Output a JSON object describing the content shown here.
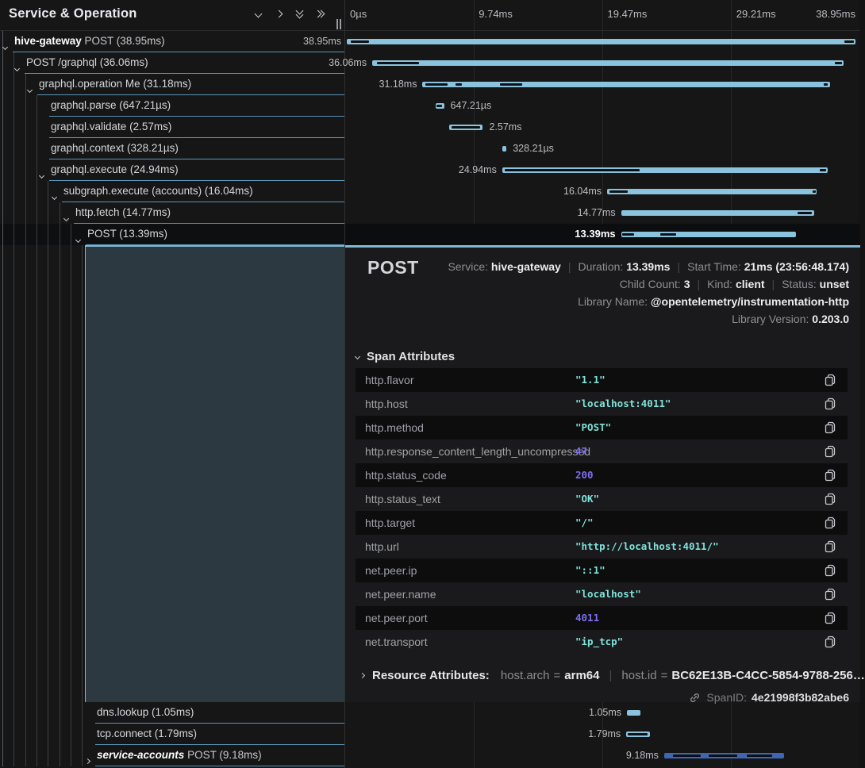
{
  "header": {
    "title": "Service & Operation",
    "icons": [
      "chevron-down-icon",
      "chevron-right-icon",
      "double-chevron-down-icon",
      "double-chevron-right-icon"
    ]
  },
  "ruler": {
    "total_ms": 38.95,
    "ticks": [
      {
        "label": "0µs",
        "pct": 0
      },
      {
        "label": "9.74ms",
        "pct": 25
      },
      {
        "label": "19.47ms",
        "pct": 50
      },
      {
        "label": "29.21ms",
        "pct": 75
      },
      {
        "label": "38.95ms",
        "pct": 100
      }
    ]
  },
  "colors": {
    "bar_light_blue": "#8ac3de",
    "bar_royal_blue": "#3f66b0",
    "row_separator": "#68acd6",
    "selected_panel": "#2c3940",
    "accent_border": "#7fb9d6",
    "attr_string": "#7fe3da",
    "attr_number": "#7d6ef2"
  },
  "rows": [
    {
      "name_bold": "hive-gateway",
      "text": " POST (38.95ms)",
      "indent": 18,
      "guides": 1,
      "chevron": "down",
      "bar": {
        "start": 0.0,
        "dur": 38.95,
        "color": "light",
        "label": "38.95ms",
        "label_side": "left",
        "marks": [
          [
            0.3,
            1.4
          ],
          [
            38.1,
            0.75
          ]
        ]
      }
    },
    {
      "text": "POST /graphql (36.06ms)",
      "indent": 33,
      "guides": 2,
      "chevron": "down",
      "bar": {
        "start": 1.95,
        "dur": 36.06,
        "color": "light",
        "label": "36.06ms",
        "label_side": "left",
        "marks": [
          [
            2.3,
            3.2
          ],
          [
            37.4,
            0.5
          ]
        ]
      }
    },
    {
      "text": "graphql.operation Me (31.18ms)",
      "indent": 49,
      "guides": 3,
      "chevron": "down",
      "bar": {
        "start": 5.8,
        "dur": 31.18,
        "color": "light",
        "label": "31.18ms",
        "label_side": "left",
        "marks": [
          [
            6.0,
            1.7
          ],
          [
            8.3,
            0.5
          ],
          [
            11.7,
            1.7
          ],
          [
            36.5,
            0.3
          ]
        ]
      }
    },
    {
      "text": "graphql.parse (647.21µs)",
      "indent": 64,
      "guides": 4,
      "chevron": "none",
      "bar": {
        "start": 6.8,
        "dur": 0.647,
        "color": "light",
        "label": "647.21µs",
        "label_side": "right",
        "marks": [
          [
            6.85,
            0.45
          ]
        ]
      }
    },
    {
      "text": "graphql.validate (2.57ms)",
      "indent": 64,
      "guides": 4,
      "chevron": "none",
      "bar": {
        "start": 7.85,
        "dur": 2.57,
        "color": "light",
        "label": "2.57ms",
        "label_side": "right",
        "marks": [
          [
            8.0,
            2.2
          ]
        ]
      }
    },
    {
      "text": "graphql.context (328.21µs)",
      "indent": 64,
      "guides": 4,
      "chevron": "none",
      "bar": {
        "start": 11.9,
        "dur": 0.328,
        "color": "light",
        "label": "328.21µs",
        "label_side": "right",
        "marks": []
      }
    },
    {
      "text": "graphql.execute (24.94ms)",
      "indent": 64,
      "guides": 4,
      "chevron": "down",
      "bar": {
        "start": 11.9,
        "dur": 24.94,
        "color": "light",
        "label": "24.94ms",
        "label_side": "left",
        "marks": [
          [
            12.1,
            10.3
          ],
          [
            36.2,
            0.5
          ]
        ]
      }
    },
    {
      "text": "subgraph.execute (accounts) (16.04ms)",
      "indent": 80,
      "guides": 5,
      "chevron": "down",
      "bar": {
        "start": 19.93,
        "dur": 16.04,
        "color": "light",
        "label": "16.04ms",
        "label_side": "left",
        "marks": [
          [
            20.1,
            1.4
          ],
          [
            35.65,
            0.25
          ]
        ]
      }
    },
    {
      "text": "http.fetch (14.77ms)",
      "indent": 95,
      "guides": 6,
      "chevron": "down",
      "bar": {
        "start": 21.0,
        "dur": 14.77,
        "color": "light",
        "label": "14.77ms",
        "label_side": "left",
        "marks": [
          [
            34.5,
            1.1
          ]
        ]
      }
    },
    {
      "text": "POST (13.39ms)",
      "indent": 110,
      "guides": 7,
      "chevron": "down",
      "selected": true,
      "bar": {
        "start": 21.0,
        "dur": 13.39,
        "color": "light",
        "label": "13.39ms",
        "label_side": "left",
        "marks": [
          [
            21.1,
            0.9
          ],
          [
            24.0,
            1.2
          ]
        ]
      }
    },
    {
      "text": "dns.lookup (1.05ms)",
      "indent": 122,
      "guides": 8,
      "chevron": "none",
      "bottom": true,
      "bar": {
        "start": 21.45,
        "dur": 1.05,
        "color": "light",
        "label": "1.05ms",
        "label_side": "left",
        "marks": []
      }
    },
    {
      "text": "tcp.connect (1.79ms)",
      "indent": 122,
      "guides": 8,
      "chevron": "none",
      "bottom": true,
      "bar": {
        "start": 21.4,
        "dur": 1.79,
        "color": "light",
        "label": "1.79ms",
        "label_side": "left",
        "marks": [
          [
            21.5,
            1.55
          ]
        ]
      }
    },
    {
      "name_bold": "service-accounts",
      "italic": true,
      "text": " POST (9.18ms)",
      "indent": 122,
      "guides": 8,
      "chevron": "right",
      "bottom": true,
      "bar": {
        "start": 24.3,
        "dur": 9.18,
        "color": "blue",
        "label": "9.18ms",
        "label_side": "left",
        "marks": [
          [
            25.0,
            2.1
          ],
          [
            27.7,
            2.2
          ],
          [
            30.6,
            2.0
          ]
        ]
      }
    }
  ],
  "detail": {
    "title": "POST",
    "meta_lines": [
      [
        {
          "label": "Service:",
          "value": "hive-gateway"
        },
        {
          "label": "Duration:",
          "value": "13.39ms"
        },
        {
          "label": "Start Time:",
          "value": "21ms (23:56:48.174)"
        }
      ],
      [
        {
          "label": "Child Count:",
          "value": "3"
        },
        {
          "label": "Kind:",
          "value": "client"
        },
        {
          "label": "Status:",
          "value": "unset"
        }
      ],
      [
        {
          "label": "Library Name:",
          "value": "@opentelemetry/instrumentation-http"
        }
      ],
      [
        {
          "label": "Library Version:",
          "value": "0.203.0"
        }
      ]
    ],
    "span_attributes_title": "Span Attributes",
    "attributes": [
      {
        "key": "http.flavor",
        "value": "\"1.1\"",
        "type": "string"
      },
      {
        "key": "http.host",
        "value": "\"localhost:4011\"",
        "type": "string"
      },
      {
        "key": "http.method",
        "value": "\"POST\"",
        "type": "string"
      },
      {
        "key": "http.response_content_length_uncompressed",
        "value": "47",
        "type": "number"
      },
      {
        "key": "http.status_code",
        "value": "200",
        "type": "number"
      },
      {
        "key": "http.status_text",
        "value": "\"OK\"",
        "type": "string"
      },
      {
        "key": "http.target",
        "value": "\"/\"",
        "type": "string"
      },
      {
        "key": "http.url",
        "value": "\"http://localhost:4011/\"",
        "type": "string"
      },
      {
        "key": "net.peer.ip",
        "value": "\"::1\"",
        "type": "string"
      },
      {
        "key": "net.peer.name",
        "value": "\"localhost\"",
        "type": "string"
      },
      {
        "key": "net.peer.port",
        "value": "4011",
        "type": "number"
      },
      {
        "key": "net.transport",
        "value": "\"ip_tcp\"",
        "type": "string"
      }
    ],
    "resource": {
      "title": "Resource Attributes:",
      "pairs": [
        {
          "key": "host.arch",
          "value": "arm64"
        },
        {
          "key": "host.id",
          "value": "BC62E13B-C4CC-5854-9788-256…"
        }
      ]
    },
    "footer": {
      "label": "SpanID:",
      "value": "4e21998f3b82abe6"
    }
  }
}
